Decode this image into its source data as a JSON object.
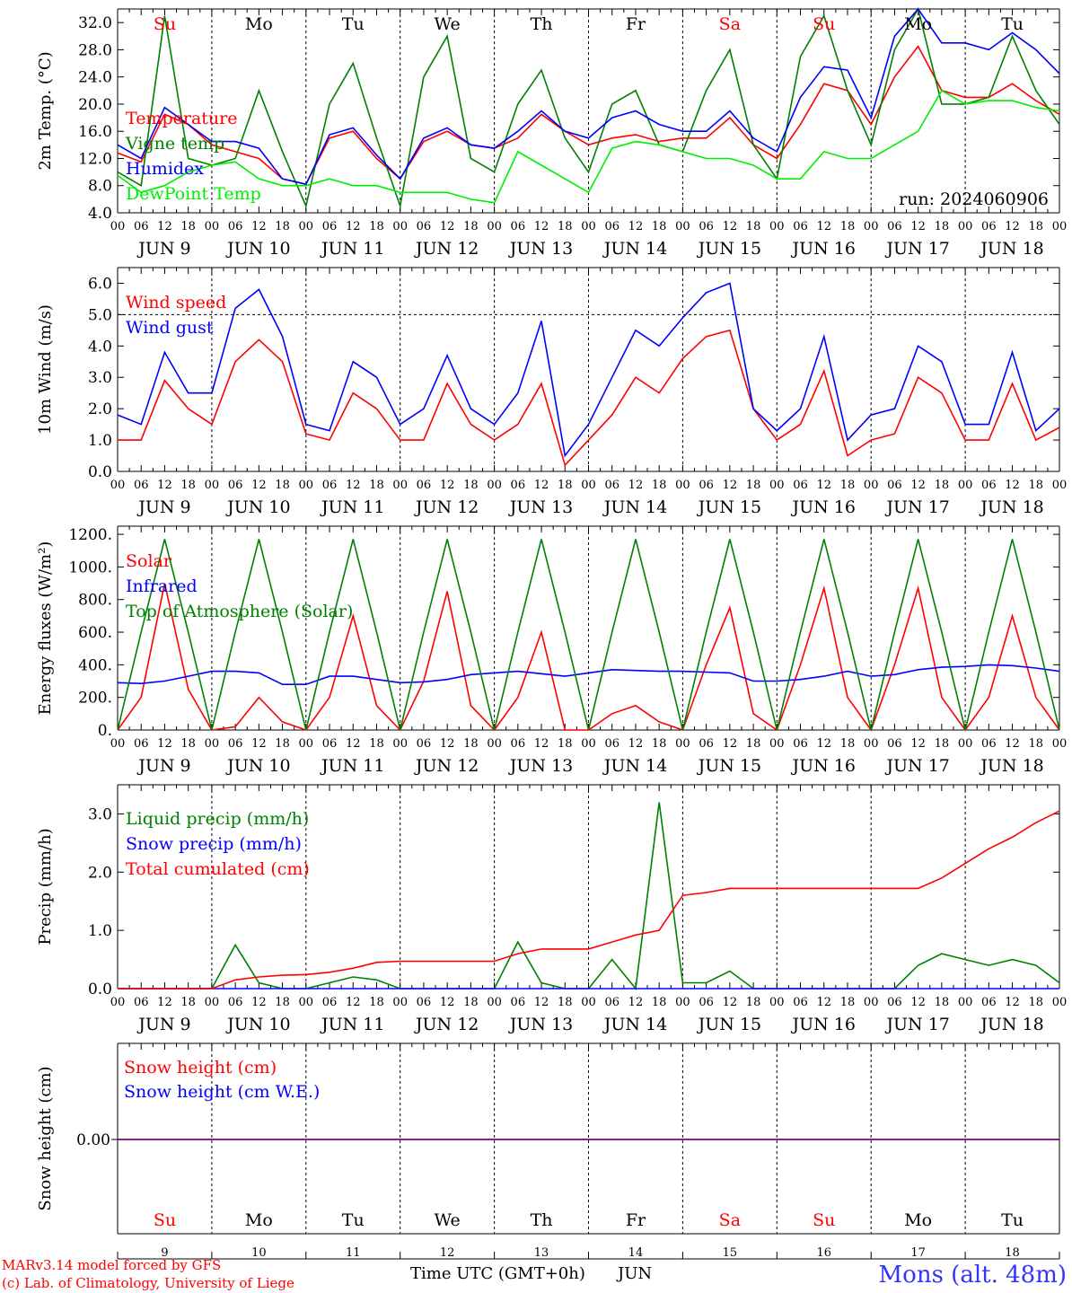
{
  "colors": {
    "red": "#ff0000",
    "green": "#008000",
    "blue": "#0000ff",
    "lime": "#00ee00",
    "purple": "#7f007f",
    "axis": "#000000"
  },
  "days": [
    "9",
    "10",
    "11",
    "12",
    "13",
    "14",
    "15",
    "16",
    "17",
    "18"
  ],
  "month": "JUN",
  "weekdays": [
    {
      "label": "Su",
      "color": "#ff0000"
    },
    {
      "label": "Mo",
      "color": "#000000"
    },
    {
      "label": "Tu",
      "color": "#000000"
    },
    {
      "label": "We",
      "color": "#000000"
    },
    {
      "label": "Th",
      "color": "#000000"
    },
    {
      "label": "Fr",
      "color": "#000000"
    },
    {
      "label": "Sa",
      "color": "#ff0000"
    },
    {
      "label": "Su",
      "color": "#ff0000"
    },
    {
      "label": "Mo",
      "color": "#000000"
    },
    {
      "label": "Tu",
      "color": "#000000"
    }
  ],
  "hour_ticks": [
    "00",
    "06",
    "12",
    "18"
  ],
  "run_label": "run: 2024060906",
  "footer": {
    "credit1": "MARv3.14 model forced by GFS",
    "credit2": "(c) Lab. of Climatology, University of Liege",
    "xlabel": "Time UTC (GMT+0h)",
    "month": "JUN",
    "station": "Mons (alt. 48m)"
  },
  "chart_data": [
    {
      "type": "line",
      "ylabel": "2m Temp. (°C)",
      "ylim": [
        4,
        34
      ],
      "yticks": [
        "4.0",
        "8.0",
        "12.0",
        "16.0",
        "20.0",
        "24.0",
        "28.0",
        "32.0"
      ],
      "x_unit": "hours since Jun 9 00 UTC",
      "x": [
        0,
        6,
        12,
        18,
        24,
        30,
        36,
        42,
        48,
        54,
        60,
        66,
        72,
        78,
        84,
        90,
        96,
        102,
        108,
        114,
        120,
        126,
        132,
        138,
        144,
        150,
        156,
        162,
        168,
        174,
        180,
        186,
        192,
        198,
        204,
        210,
        216,
        222,
        228,
        234,
        240
      ],
      "series": [
        {
          "name": "Temperature",
          "color": "#ff0000",
          "values": [
            12.8,
            11.5,
            18.5,
            17,
            14,
            13,
            12,
            9,
            8.2,
            15,
            16,
            12,
            9,
            14.5,
            16,
            14,
            13.5,
            15,
            18.5,
            16,
            14,
            15,
            15.5,
            14.5,
            15,
            15,
            18,
            14,
            12,
            17,
            23,
            22,
            17,
            24,
            28.5,
            22,
            21,
            21,
            23,
            20.5,
            18.5
          ]
        },
        {
          "name": "Vigne temp",
          "color": "#008000",
          "values": [
            10,
            8,
            33,
            12,
            11,
            12,
            22,
            13,
            5,
            20,
            26,
            15,
            5,
            24,
            30,
            12,
            10,
            20,
            25,
            15,
            10,
            20,
            22,
            14,
            13,
            22,
            28,
            14,
            9,
            27,
            33,
            22,
            14,
            28,
            34,
            20,
            20,
            21,
            30,
            22,
            17
          ]
        },
        {
          "name": "Humidex",
          "color": "#0000ff",
          "values": [
            14,
            12,
            19.5,
            17,
            14.5,
            14.5,
            13.5,
            9,
            8.2,
            15.5,
            16.5,
            12.5,
            9,
            15,
            16.5,
            14,
            13.5,
            16,
            19,
            16,
            15,
            18,
            19,
            17,
            16,
            16,
            19,
            15,
            13,
            21,
            25.5,
            25,
            18,
            30,
            34,
            29,
            29,
            28,
            30.5,
            28,
            24.5
          ]
        },
        {
          "name": "DewPoint Temp",
          "color": "#00ee00",
          "values": [
            9.5,
            7,
            8,
            10,
            11,
            11.5,
            9,
            8,
            8,
            9,
            8,
            8,
            7,
            7,
            7,
            6,
            5.5,
            13,
            11,
            9,
            7,
            13.5,
            14.5,
            14,
            13,
            12,
            12,
            11,
            9,
            9,
            13,
            12,
            12,
            14,
            16,
            22,
            20,
            20.5,
            20.5,
            19.5,
            19
          ]
        }
      ]
    },
    {
      "type": "line",
      "ylabel": "10m Wind (m/s)",
      "ylim": [
        0,
        6.5
      ],
      "yticks": [
        "0.0",
        "1.0",
        "2.0",
        "3.0",
        "4.0",
        "5.0",
        "6.0"
      ],
      "x_unit": "hours since Jun 9 00 UTC",
      "x": [
        0,
        6,
        12,
        18,
        24,
        30,
        36,
        42,
        48,
        54,
        60,
        66,
        72,
        78,
        84,
        90,
        96,
        102,
        108,
        114,
        120,
        126,
        132,
        138,
        144,
        150,
        156,
        162,
        168,
        174,
        180,
        186,
        192,
        198,
        204,
        210,
        216,
        222,
        228,
        234,
        240
      ],
      "series": [
        {
          "name": "Wind speed",
          "color": "#ff0000",
          "values": [
            1,
            1,
            2.9,
            2,
            1.5,
            3.5,
            4.2,
            3.5,
            1.2,
            1,
            2.5,
            2,
            1,
            1,
            2.8,
            1.5,
            1,
            1.5,
            2.8,
            0.2,
            1,
            1.8,
            3,
            2.5,
            3.6,
            4.3,
            4.5,
            2,
            1,
            1.5,
            3.2,
            0.5,
            1,
            1.2,
            3,
            2.5,
            1,
            1,
            2.8,
            1,
            1.4
          ]
        },
        {
          "name": "Wind gust",
          "color": "#0000ff",
          "values": [
            1.8,
            1.5,
            3.8,
            2.5,
            2.5,
            5.2,
            5.8,
            4.3,
            1.5,
            1.3,
            3.5,
            3,
            1.5,
            2,
            3.7,
            2,
            1.5,
            2.5,
            4.8,
            0.5,
            1.5,
            3,
            4.5,
            4,
            4.9,
            5.7,
            6,
            2,
            1.3,
            2,
            4.3,
            1,
            1.8,
            2,
            4,
            3.5,
            1.5,
            1.5,
            3.8,
            1.3,
            2
          ]
        }
      ],
      "reference_line": 5.0
    },
    {
      "type": "line",
      "ylabel": "Energy fluxes (W/m²)",
      "ylim": [
        0,
        1250
      ],
      "yticks": [
        "0.",
        "200.",
        "400.",
        "600.",
        "800.",
        "1000.",
        "1200."
      ],
      "x_unit": "hours since Jun 9 00 UTC",
      "x": [
        0,
        6,
        12,
        18,
        24,
        30,
        36,
        42,
        48,
        54,
        60,
        66,
        72,
        78,
        84,
        90,
        96,
        102,
        108,
        114,
        120,
        126,
        132,
        138,
        144,
        150,
        156,
        162,
        168,
        174,
        180,
        186,
        192,
        198,
        204,
        210,
        216,
        222,
        228,
        234,
        240
      ],
      "series": [
        {
          "name": "Solar",
          "color": "#ff0000",
          "values": [
            0,
            200,
            900,
            250,
            0,
            20,
            200,
            50,
            0,
            200,
            700,
            150,
            0,
            300,
            850,
            150,
            0,
            200,
            600,
            0,
            0,
            100,
            150,
            50,
            0,
            400,
            750,
            100,
            0,
            400,
            870,
            200,
            0,
            400,
            870,
            200,
            0,
            200,
            700,
            200,
            0
          ]
        },
        {
          "name": "Infrared",
          "color": "#0000ff",
          "values": [
            290,
            285,
            300,
            330,
            360,
            360,
            350,
            280,
            280,
            330,
            330,
            310,
            290,
            295,
            310,
            340,
            350,
            360,
            345,
            330,
            350,
            370,
            365,
            360,
            360,
            355,
            350,
            300,
            300,
            310,
            330,
            360,
            330,
            340,
            370,
            385,
            390,
            400,
            395,
            380,
            360
          ]
        },
        {
          "name": "Top of Atmosphere (Solar)",
          "color": "#008000",
          "values": [
            0,
            600,
            1170,
            600,
            0,
            600,
            1170,
            600,
            0,
            600,
            1170,
            600,
            0,
            600,
            1170,
            600,
            0,
            600,
            1170,
            600,
            0,
            600,
            1170,
            600,
            0,
            600,
            1170,
            600,
            0,
            600,
            1170,
            600,
            0,
            600,
            1170,
            600,
            0,
            600,
            1170,
            600,
            0
          ]
        }
      ]
    },
    {
      "type": "line",
      "ylabel": "Precip (mm/h)",
      "ylim": [
        0,
        3.5
      ],
      "yticks": [
        "0.0",
        "1.0",
        "2.0",
        "3.0"
      ],
      "x_unit": "hours since Jun 9 00 UTC",
      "x": [
        0,
        6,
        12,
        18,
        24,
        30,
        36,
        42,
        48,
        54,
        60,
        66,
        72,
        78,
        84,
        90,
        96,
        102,
        108,
        114,
        120,
        126,
        132,
        138,
        144,
        150,
        156,
        162,
        168,
        174,
        180,
        186,
        192,
        198,
        204,
        210,
        216,
        222,
        228,
        234,
        240
      ],
      "series": [
        {
          "name": "Liquid precip (mm/h)",
          "color": "#008000",
          "values": [
            0,
            0,
            0,
            0,
            0,
            0.75,
            0.1,
            0,
            0,
            0.1,
            0.2,
            0.15,
            0,
            0,
            0,
            0,
            0,
            0.8,
            0.1,
            0,
            0,
            0.5,
            0,
            3.2,
            0.1,
            0.1,
            0.3,
            0,
            0,
            0,
            0,
            0,
            0,
            0,
            0.4,
            0.6,
            0.5,
            0.4,
            0.5,
            0.4,
            0.1
          ]
        },
        {
          "name": "Snow precip (mm/h)",
          "color": "#0000ff",
          "values": [
            0,
            0,
            0,
            0,
            0,
            0,
            0,
            0,
            0,
            0,
            0,
            0,
            0,
            0,
            0,
            0,
            0,
            0,
            0,
            0,
            0,
            0,
            0,
            0,
            0,
            0,
            0,
            0,
            0,
            0,
            0,
            0,
            0,
            0,
            0,
            0,
            0,
            0,
            0,
            0,
            0
          ]
        },
        {
          "name": "Total cumulated (cm)",
          "color": "#ff0000",
          "values": [
            0,
            0,
            0,
            0,
            0,
            0.15,
            0.2,
            0.23,
            0.24,
            0.28,
            0.35,
            0.45,
            0.47,
            0.47,
            0.47,
            0.47,
            0.47,
            0.6,
            0.68,
            0.68,
            0.68,
            0.8,
            0.92,
            1.0,
            1.6,
            1.65,
            1.72,
            1.72,
            1.72,
            1.72,
            1.72,
            1.72,
            1.72,
            1.72,
            1.72,
            1.9,
            2.15,
            2.4,
            2.6,
            2.85,
            3.05
          ]
        }
      ]
    },
    {
      "type": "line",
      "ylabel": "Snow height (cm)",
      "yticks": [
        "0.00"
      ],
      "series": [
        {
          "name": "Snow height (cm)",
          "color": "#ff0000",
          "value": 0
        },
        {
          "name": "Snow height (cm W.E.)",
          "color": "#0000ff",
          "value": 0
        }
      ]
    }
  ]
}
